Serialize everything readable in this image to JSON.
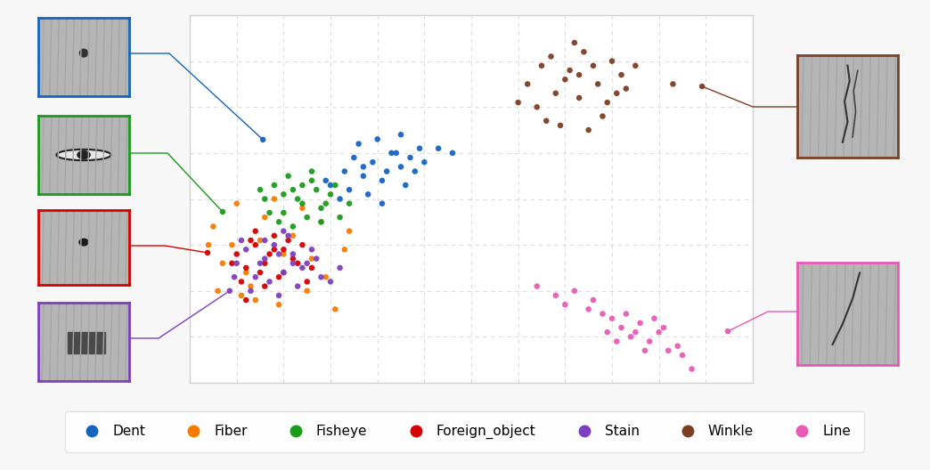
{
  "chart_data": {
    "type": "scatter",
    "xlim": [
      0,
      12
    ],
    "ylim": [
      0,
      8
    ],
    "xticks": [
      1,
      2,
      3,
      4,
      5,
      6,
      7,
      8,
      9,
      10,
      11
    ],
    "yticks": [
      1,
      2,
      3,
      4,
      5,
      6,
      7
    ],
    "grid": true,
    "tick_labels": false,
    "legend": "lower center",
    "series": [
      {
        "name": "Dent",
        "color": "#1565c0",
        "x": [
          3.0,
          3.3,
          3.5,
          3.7,
          3.9,
          4.1,
          4.3,
          4.5,
          4.7,
          4.9,
          3.4,
          3.8,
          4.2,
          4.6,
          5.0,
          3.6,
          4.0,
          4.4,
          4.8,
          3.2,
          5.3,
          2.9,
          4.1,
          4.5,
          3.7,
          5.6,
          1.56
        ],
        "values": [
          4.3,
          4.6,
          4.9,
          4.5,
          4.8,
          4.4,
          5.0,
          4.7,
          4.9,
          5.1,
          4.2,
          4.1,
          4.6,
          4.3,
          4.8,
          5.2,
          5.3,
          5.0,
          4.6,
          4.0,
          5.1,
          4.4,
          3.9,
          5.4,
          4.7,
          5.0,
          5.29
        ]
      },
      {
        "name": "Fiber",
        "color": "#f57c00",
        "x": [
          0.5,
          0.7,
          1.0,
          1.3,
          1.6,
          1.9,
          2.2,
          2.5,
          2.8,
          3.1,
          0.9,
          1.2,
          1.5,
          2.0,
          2.4,
          2.9,
          3.4,
          0.6,
          1.1,
          1.8,
          2.6,
          3.3,
          0.4,
          1.4
        ],
        "values": [
          3.4,
          2.6,
          3.9,
          2.1,
          3.6,
          1.7,
          3.2,
          2.0,
          3.5,
          1.6,
          3.0,
          2.4,
          3.1,
          2.8,
          3.8,
          2.3,
          3.3,
          2.0,
          1.9,
          4.0,
          2.7,
          2.9,
          3.0,
          1.8
        ]
      },
      {
        "name": "Fisheye",
        "color": "#1a9c1a",
        "x": [
          1.6,
          1.8,
          2.0,
          2.2,
          2.4,
          2.6,
          2.8,
          3.0,
          3.2,
          1.9,
          2.1,
          2.3,
          2.5,
          2.7,
          2.9,
          3.1,
          1.7,
          2.2,
          2.6,
          3.4,
          2.0,
          2.4,
          2.8,
          1.5,
          0.7
        ],
        "values": [
          4.0,
          4.3,
          3.7,
          4.2,
          3.9,
          4.4,
          3.8,
          4.1,
          3.6,
          3.5,
          4.5,
          4.0,
          3.6,
          4.2,
          3.9,
          4.3,
          3.7,
          3.4,
          4.6,
          3.9,
          4.1,
          4.3,
          3.5,
          4.2,
          3.72
        ]
      },
      {
        "name": "Foreign_object",
        "color": "#d50000",
        "x": [
          1.0,
          1.2,
          1.4,
          1.6,
          1.8,
          2.0,
          2.2,
          2.4,
          1.1,
          1.3,
          1.5,
          1.7,
          1.9,
          2.1,
          2.3,
          2.6,
          0.9,
          1.6,
          2.0,
          1.4,
          2.5,
          0.38,
          1.2,
          1.8
        ],
        "values": [
          2.8,
          2.5,
          3.0,
          2.6,
          2.9,
          2.4,
          2.7,
          3.0,
          2.2,
          3.1,
          2.4,
          2.8,
          2.3,
          3.1,
          2.6,
          2.5,
          2.6,
          2.1,
          2.9,
          3.3,
          2.2,
          2.83,
          1.8,
          3.2
        ]
      },
      {
        "name": "Stain",
        "color": "#7e3fbf",
        "x": [
          1.0,
          1.2,
          1.4,
          1.6,
          1.8,
          2.0,
          2.2,
          2.4,
          2.6,
          2.8,
          1.3,
          1.5,
          1.7,
          1.9,
          2.1,
          2.3,
          2.5,
          2.7,
          3.0,
          0.95,
          1.1,
          1.9,
          2.2,
          3.2,
          1.6,
          2.0,
          0.85
        ],
        "values": [
          2.6,
          2.9,
          2.3,
          2.7,
          3.0,
          2.4,
          2.8,
          2.5,
          2.9,
          2.3,
          2.0,
          2.6,
          2.2,
          2.8,
          3.2,
          2.1,
          2.6,
          2.7,
          2.2,
          2.3,
          3.1,
          1.9,
          2.6,
          2.5,
          3.1,
          3.3,
          2.0
        ]
      },
      {
        "name": "Winkle",
        "color": "#7b3f25",
        "x": [
          7.2,
          7.5,
          7.8,
          8.1,
          8.4,
          8.7,
          9.0,
          9.3,
          7.4,
          7.7,
          8.0,
          8.3,
          8.6,
          8.9,
          9.2,
          7.0,
          7.6,
          8.2,
          8.8,
          9.5,
          7.9,
          8.5,
          9.1,
          10.3,
          10.92,
          8.3
        ],
        "values": [
          6.5,
          6.9,
          6.3,
          6.8,
          7.2,
          6.5,
          7.0,
          6.4,
          6.0,
          7.1,
          6.6,
          6.2,
          6.9,
          6.1,
          6.7,
          6.1,
          5.7,
          7.4,
          5.8,
          6.9,
          5.6,
          5.5,
          6.3,
          6.5,
          6.45,
          6.7
        ]
      },
      {
        "name": "Line",
        "color": "#e85bb5",
        "x": [
          7.4,
          7.8,
          8.2,
          8.5,
          8.8,
          9.0,
          9.2,
          9.4,
          9.6,
          9.8,
          10.0,
          10.2,
          10.4,
          8.9,
          9.3,
          9.7,
          10.1,
          10.5,
          8.6,
          9.1,
          9.5,
          9.9,
          10.7,
          11.47,
          8.0
        ],
        "values": [
          2.1,
          1.9,
          2.0,
          1.6,
          1.5,
          1.4,
          1.2,
          1.0,
          1.3,
          0.9,
          1.1,
          0.7,
          0.8,
          1.1,
          1.5,
          0.7,
          1.2,
          0.6,
          1.8,
          0.9,
          1.1,
          1.4,
          0.3,
          1.12,
          1.7
        ]
      }
    ]
  }
}
